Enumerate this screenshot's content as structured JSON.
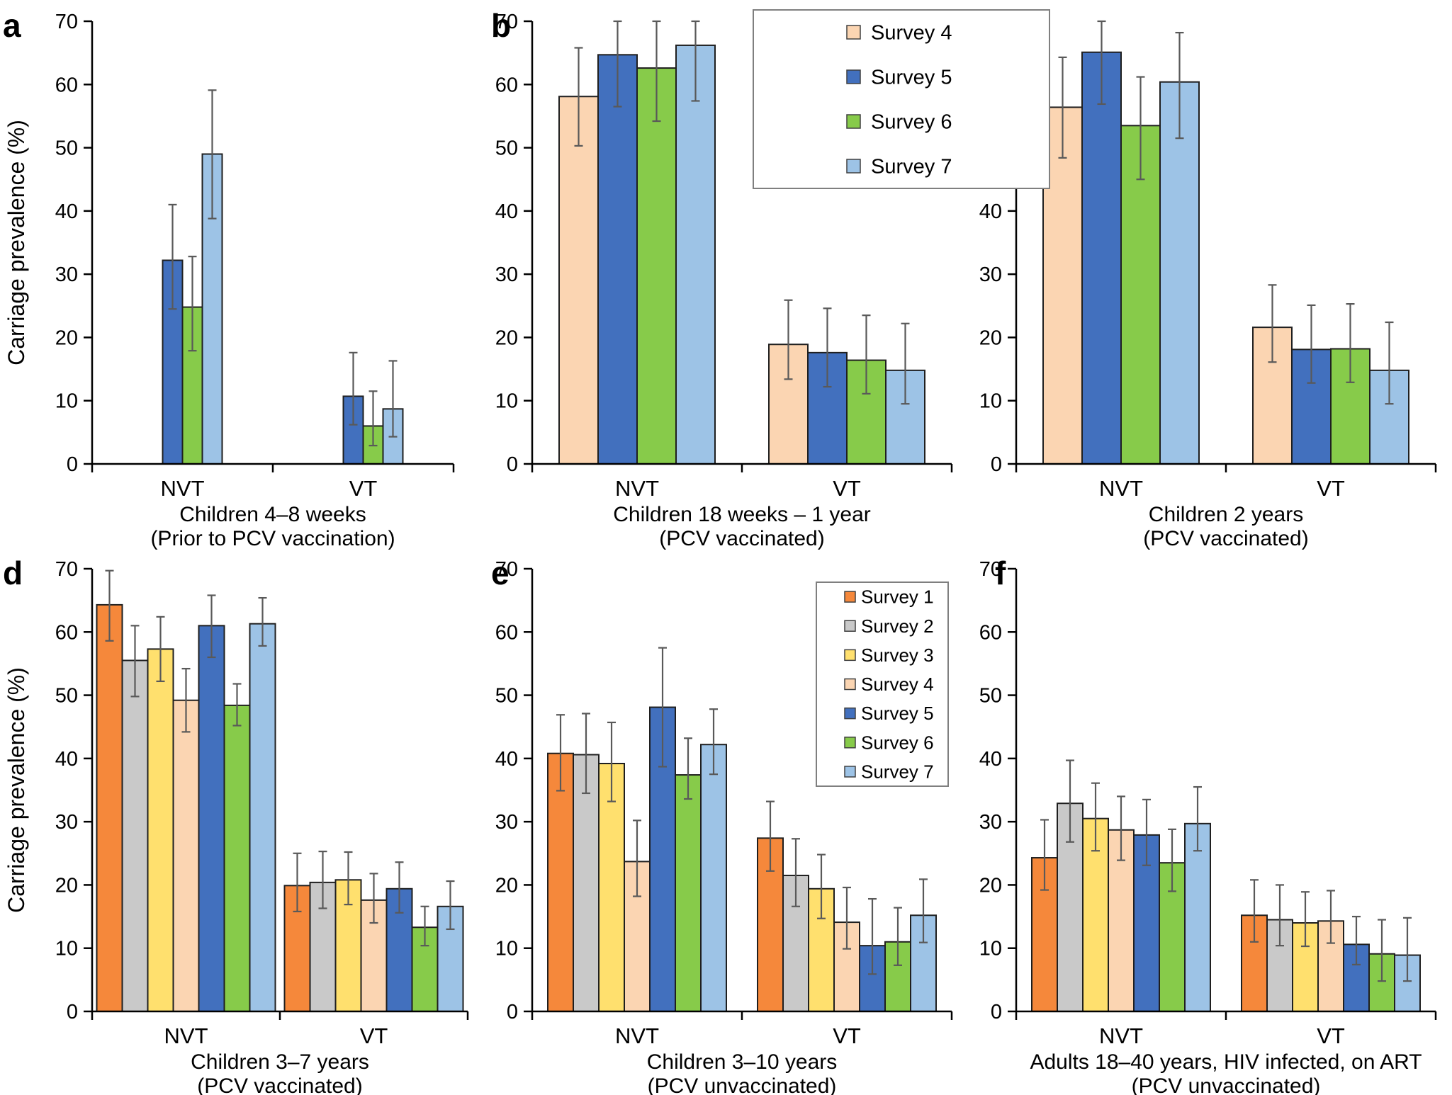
{
  "figure": {
    "ylabel": "Carriage prevalence (%)",
    "categories": [
      "NVT",
      "VT"
    ],
    "yticks": [
      0,
      10,
      20,
      30,
      40,
      50,
      60,
      70
    ],
    "axis_color": "#000000",
    "bar_outline_color": "#1f1f1f",
    "error_bar_color": "#595959",
    "legend_border_color": "#7f7f7f"
  },
  "survey_colors": {
    "Survey 1": "#F5883B",
    "Survey 2": "#C9C9C9",
    "Survey 3": "#FFE06E",
    "Survey 4": "#FBD5B2",
    "Survey 5": "#4270BE",
    "Survey 6": "#87CB4A",
    "Survey 7": "#9DC3E6"
  },
  "chart_data": [
    {
      "id": "a",
      "panel_label": "a",
      "type": "bar",
      "title_lines": [
        "Children 4–8 weeks",
        "(Prior to PCV vaccination)"
      ],
      "categories": [
        "NVT",
        "VT"
      ],
      "ylim": [
        0,
        70
      ],
      "ylabel_shown": true,
      "legend_shown": false,
      "grid": false,
      "series": [
        {
          "name": "Survey 4",
          "values": [
            null,
            null
          ],
          "err_low": [
            null,
            null
          ],
          "err_high": [
            null,
            null
          ]
        },
        {
          "name": "Survey 5",
          "values": [
            32.2,
            10.7
          ],
          "err_low": [
            24.5,
            6.2
          ],
          "err_high": [
            41.0,
            17.6
          ]
        },
        {
          "name": "Survey 6",
          "values": [
            24.8,
            6.0
          ],
          "err_low": [
            17.9,
            2.9
          ],
          "err_high": [
            32.8,
            11.5
          ]
        },
        {
          "name": "Survey 7",
          "values": [
            49.0,
            8.7
          ],
          "err_low": [
            38.8,
            4.3
          ],
          "err_high": [
            59.1,
            16.3
          ]
        }
      ]
    },
    {
      "id": "b",
      "panel_label": "b",
      "type": "bar",
      "title_lines": [
        "Children 18 weeks – 1 year",
        "(PCV vaccinated)"
      ],
      "categories": [
        "NVT",
        "VT"
      ],
      "ylim": [
        0,
        70
      ],
      "ylabel_shown": false,
      "legend_shown": true,
      "grid": false,
      "series": [
        {
          "name": "Survey 4",
          "values": [
            58.1,
            18.9
          ],
          "err_low": [
            50.3,
            13.4
          ],
          "err_high": [
            65.8,
            25.9
          ]
        },
        {
          "name": "Survey 5",
          "values": [
            64.7,
            17.6
          ],
          "err_low": [
            56.5,
            12.2
          ],
          "err_high": [
            70.0,
            24.6
          ]
        },
        {
          "name": "Survey 6",
          "values": [
            62.6,
            16.4
          ],
          "err_low": [
            54.2,
            11.1
          ],
          "err_high": [
            70.0,
            23.5
          ]
        },
        {
          "name": "Survey 7",
          "values": [
            66.2,
            14.8
          ],
          "err_low": [
            57.4,
            9.5
          ],
          "err_high": [
            70.0,
            22.2
          ]
        }
      ]
    },
    {
      "id": "c",
      "panel_label": "c",
      "type": "bar",
      "title_lines": [
        "Children 2 years",
        "(PCV vaccinated)"
      ],
      "categories": [
        "NVT",
        "VT"
      ],
      "ylim": [
        0,
        70
      ],
      "ylabel_shown": false,
      "legend_shown": false,
      "grid": false,
      "series": [
        {
          "name": "Survey 4",
          "values": [
            56.4,
            21.6
          ],
          "err_low": [
            48.4,
            16.1
          ],
          "err_high": [
            64.3,
            28.3
          ]
        },
        {
          "name": "Survey 5",
          "values": [
            65.1,
            18.1
          ],
          "err_low": [
            56.9,
            12.8
          ],
          "err_high": [
            70.0,
            25.1
          ]
        },
        {
          "name": "Survey 6",
          "values": [
            53.5,
            18.2
          ],
          "err_low": [
            45.0,
            12.9
          ],
          "err_high": [
            61.2,
            25.3
          ]
        },
        {
          "name": "Survey 7",
          "values": [
            60.4,
            14.8
          ],
          "err_low": [
            51.5,
            9.5
          ],
          "err_high": [
            68.2,
            22.4
          ]
        }
      ]
    },
    {
      "id": "d",
      "panel_label": "d",
      "type": "bar",
      "title_lines": [
        "Children 3–7 years",
        "(PCV vaccinated)"
      ],
      "categories": [
        "NVT",
        "VT"
      ],
      "ylim": [
        0,
        70
      ],
      "ylabel_shown": true,
      "legend_shown": false,
      "grid": false,
      "series": [
        {
          "name": "Survey 1",
          "values": [
            64.3,
            19.9
          ],
          "err_low": [
            58.6,
            15.8
          ],
          "err_high": [
            69.7,
            25.0
          ]
        },
        {
          "name": "Survey 2",
          "values": [
            55.5,
            20.4
          ],
          "err_low": [
            49.8,
            16.3
          ],
          "err_high": [
            61.0,
            25.3
          ]
        },
        {
          "name": "Survey 3",
          "values": [
            57.3,
            20.8
          ],
          "err_low": [
            52.2,
            16.9
          ],
          "err_high": [
            62.4,
            25.2
          ]
        },
        {
          "name": "Survey 4",
          "values": [
            49.2,
            17.6
          ],
          "err_low": [
            44.2,
            14.0
          ],
          "err_high": [
            54.2,
            21.8
          ]
        },
        {
          "name": "Survey 5",
          "values": [
            61.0,
            19.4
          ],
          "err_low": [
            56.0,
            15.6
          ],
          "err_high": [
            65.8,
            23.6
          ]
        },
        {
          "name": "Survey 6",
          "values": [
            48.4,
            13.3
          ],
          "err_low": [
            45.2,
            10.4
          ],
          "err_high": [
            51.8,
            16.6
          ]
        },
        {
          "name": "Survey 7",
          "values": [
            61.3,
            16.6
          ],
          "err_low": [
            57.8,
            13.0
          ],
          "err_high": [
            65.4,
            20.6
          ]
        }
      ]
    },
    {
      "id": "e",
      "panel_label": "e",
      "type": "bar",
      "title_lines": [
        "Children 3–10 years",
        "(PCV unvaccinated)"
      ],
      "categories": [
        "NVT",
        "VT"
      ],
      "ylim": [
        0,
        70
      ],
      "ylabel_shown": false,
      "legend_shown": true,
      "grid": false,
      "series": [
        {
          "name": "Survey 1",
          "values": [
            40.8,
            27.4
          ],
          "err_low": [
            34.9,
            22.2
          ],
          "err_high": [
            46.9,
            33.2
          ]
        },
        {
          "name": "Survey 2",
          "values": [
            40.6,
            21.5
          ],
          "err_low": [
            34.5,
            16.6
          ],
          "err_high": [
            47.1,
            27.3
          ]
        },
        {
          "name": "Survey 3",
          "values": [
            39.2,
            19.4
          ],
          "err_low": [
            33.2,
            14.7
          ],
          "err_high": [
            45.7,
            24.8
          ]
        },
        {
          "name": "Survey 4",
          "values": [
            23.7,
            14.1
          ],
          "err_low": [
            18.2,
            9.9
          ],
          "err_high": [
            30.2,
            19.6
          ]
        },
        {
          "name": "Survey 5",
          "values": [
            48.1,
            10.4
          ],
          "err_low": [
            38.7,
            5.9
          ],
          "err_high": [
            57.5,
            17.8
          ]
        },
        {
          "name": "Survey 6",
          "values": [
            37.4,
            11.0
          ],
          "err_low": [
            33.6,
            7.3
          ],
          "err_high": [
            43.2,
            16.4
          ]
        },
        {
          "name": "Survey 7",
          "values": [
            42.2,
            15.2
          ],
          "err_low": [
            37.5,
            10.9
          ],
          "err_high": [
            47.8,
            20.9
          ]
        }
      ]
    },
    {
      "id": "f",
      "panel_label": "f",
      "type": "bar",
      "title_lines": [
        "Adults 18–40 years, HIV infected, on ART",
        "(PCV unvaccinated)"
      ],
      "categories": [
        "NVT",
        "VT"
      ],
      "ylim": [
        0,
        70
      ],
      "ylabel_shown": false,
      "legend_shown": false,
      "grid": false,
      "series": [
        {
          "name": "Survey 1",
          "values": [
            24.3,
            15.2
          ],
          "err_low": [
            19.2,
            11.0
          ],
          "err_high": [
            30.3,
            20.8
          ]
        },
        {
          "name": "Survey 2",
          "values": [
            32.9,
            14.5
          ],
          "err_low": [
            26.8,
            10.4
          ],
          "err_high": [
            39.7,
            20.0
          ]
        },
        {
          "name": "Survey 3",
          "values": [
            30.5,
            14.0
          ],
          "err_low": [
            25.4,
            10.3
          ],
          "err_high": [
            36.1,
            18.9
          ]
        },
        {
          "name": "Survey 4",
          "values": [
            28.7,
            14.3
          ],
          "err_low": [
            23.9,
            10.8
          ],
          "err_high": [
            34.0,
            19.1
          ]
        },
        {
          "name": "Survey 5",
          "values": [
            27.9,
            10.6
          ],
          "err_low": [
            23.1,
            7.4
          ],
          "err_high": [
            33.5,
            15.0
          ]
        },
        {
          "name": "Survey 6",
          "values": [
            23.5,
            9.1
          ],
          "err_low": [
            19.0,
            4.8
          ],
          "err_high": [
            28.8,
            14.5
          ]
        },
        {
          "name": "Survey 7",
          "values": [
            29.7,
            8.9
          ],
          "err_low": [
            25.4,
            4.8
          ],
          "err_high": [
            35.5,
            14.8
          ]
        }
      ]
    }
  ]
}
